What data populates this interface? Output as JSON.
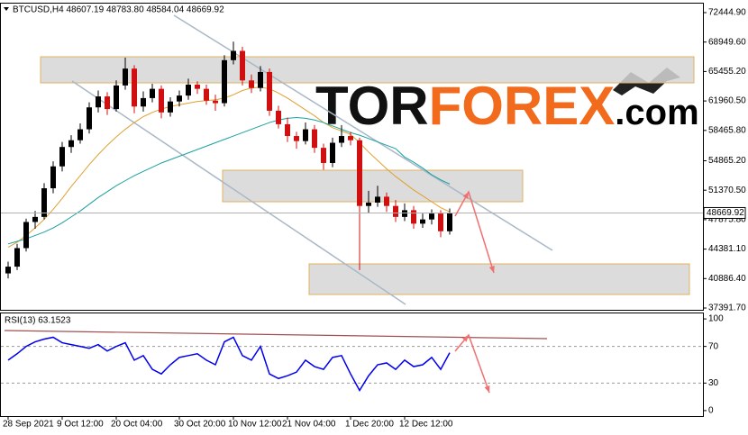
{
  "chart_data": [
    {
      "type": "candlestick",
      "title": "BTCUSD,H4  48607.19 48783.80 48584.04 48669.92",
      "categories": [
        "28 Sep 2021",
        null,
        null,
        null,
        null,
        null,
        "9 Oct 12:00",
        null,
        null,
        null,
        null,
        null,
        "20 Oct 04:00",
        null,
        null,
        null,
        null,
        null,
        null,
        "30 Oct 20:00",
        null,
        null,
        null,
        null,
        null,
        "10 Nov 12:00",
        null,
        null,
        null,
        null,
        null,
        "21 Nov 04:00",
        null,
        null,
        null,
        null,
        null,
        null,
        "1 Dec 20:00",
        null,
        null,
        null,
        null,
        null,
        "12 Dec 12:00",
        null,
        null,
        null,
        null,
        null
      ],
      "candles": [
        [
          41500,
          42900,
          40900,
          42300
        ],
        [
          42300,
          45000,
          41900,
          44500
        ],
        [
          44500,
          48000,
          44100,
          47600
        ],
        [
          47600,
          48900,
          46800,
          48200
        ],
        [
          48200,
          52200,
          47900,
          51600
        ],
        [
          51600,
          54800,
          51000,
          54200
        ],
        [
          54200,
          57100,
          53600,
          56500
        ],
        [
          56500,
          57900,
          55800,
          57300
        ],
        [
          57300,
          59300,
          56900,
          58600
        ],
        [
          58600,
          61800,
          58100,
          61200
        ],
        [
          61200,
          63200,
          60600,
          62500
        ],
        [
          62500,
          63000,
          60300,
          61000
        ],
        [
          61000,
          64400,
          60700,
          63800
        ],
        [
          63800,
          67100,
          63300,
          65800
        ],
        [
          65800,
          66200,
          60500,
          61300
        ],
        [
          61300,
          63100,
          60700,
          62300
        ],
        [
          62300,
          64000,
          61800,
          63400
        ],
        [
          63400,
          63800,
          59900,
          60600
        ],
        [
          60600,
          62400,
          60100,
          61900
        ],
        [
          61900,
          63200,
          61300,
          62600
        ],
        [
          62600,
          64600,
          62100,
          63900
        ],
        [
          63900,
          64300,
          62800,
          63400
        ],
        [
          63400,
          63900,
          61500,
          62000
        ],
        [
          62000,
          62700,
          60800,
          61700
        ],
        [
          61700,
          67400,
          61300,
          66800
        ],
        [
          66800,
          69000,
          66300,
          67900
        ],
        [
          67900,
          68400,
          63800,
          64400
        ],
        [
          64400,
          65100,
          62900,
          63500
        ],
        [
          63500,
          66100,
          63100,
          65400
        ],
        [
          65400,
          65800,
          60200,
          60800
        ],
        [
          60800,
          61400,
          58700,
          59200
        ],
        [
          59200,
          60000,
          57100,
          57800
        ],
        [
          57800,
          58300,
          56300,
          57200
        ],
        [
          57200,
          59400,
          56800,
          58600
        ],
        [
          58600,
          59100,
          55800,
          56400
        ],
        [
          56400,
          56900,
          53800,
          54600
        ],
        [
          54600,
          57600,
          54100,
          57000
        ],
        [
          57000,
          59100,
          56500,
          57800
        ],
        [
          57800,
          58300,
          56700,
          57300
        ],
        [
          57300,
          57600,
          41900,
          49500
        ],
        [
          49500,
          51300,
          48700,
          49900
        ],
        [
          49900,
          51900,
          49400,
          50600
        ],
        [
          50600,
          51100,
          48800,
          49500
        ],
        [
          49500,
          50200,
          47600,
          48200
        ],
        [
          48200,
          49800,
          47700,
          49000
        ],
        [
          49000,
          49500,
          46800,
          47400
        ],
        [
          47400,
          48600,
          46900,
          47900
        ],
        [
          47900,
          49100,
          47300,
          48600
        ],
        [
          48600,
          49000,
          45800,
          46500
        ],
        [
          46500,
          49200,
          46100,
          48669.92
        ]
      ],
      "up_color": "#000000",
      "down_color": "#d01010",
      "series": [
        {
          "color": "#e0a030",
          "values": [
            44600,
            45200,
            46000,
            46900,
            47900,
            49100,
            50400,
            51800,
            53100,
            54400,
            55600,
            56700,
            57700,
            58600,
            59400,
            60100,
            60600,
            61000,
            61300,
            61500,
            61700,
            61900,
            62000,
            62100,
            62300,
            62700,
            63200,
            63500,
            63600,
            63400,
            62900,
            62300,
            61600,
            60900,
            60200,
            59400,
            58800,
            58400,
            58000,
            57000,
            55900,
            54900,
            53900,
            53000,
            52200,
            51400,
            50700,
            50000,
            49300,
            48800
          ]
        },
        {
          "color": "#1aa0a0",
          "values": [
            45000,
            45300,
            45600,
            46000,
            46400,
            46900,
            47500,
            48200,
            48900,
            49700,
            50500,
            51200,
            51900,
            52500,
            53100,
            53600,
            54100,
            54600,
            55000,
            55400,
            55800,
            56200,
            56600,
            57000,
            57400,
            57800,
            58200,
            58600,
            59000,
            59400,
            59700,
            59900,
            60000,
            59900,
            59700,
            59400,
            59000,
            58600,
            58200,
            57900,
            57500,
            57100,
            56700,
            56300,
            55300,
            54700,
            54000,
            53200,
            52600,
            52100
          ]
        }
      ],
      "ylim": [
        37071,
        73513
      ],
      "yticks": [
        {
          "value": 72444.9,
          "label": "72444.90"
        },
        {
          "value": 68949.6,
          "label": "68949.60"
        },
        {
          "value": 65455.2,
          "label": "65455.20"
        },
        {
          "value": 61960.5,
          "label": "61960.50"
        },
        {
          "value": 58465.8,
          "label": "58465.80"
        },
        {
          "value": 54865.2,
          "label": "54865.20"
        },
        {
          "value": 51370.5,
          "label": "51370.50"
        },
        {
          "value": 47875.8,
          "label": "47875.80"
        },
        {
          "value": 44381.1,
          "label": "44381.10"
        },
        {
          "value": 40886.4,
          "label": "40886.40"
        },
        {
          "value": 37391.7,
          "label": "37391.70"
        }
      ],
      "last_price": 48669.92,
      "watermark": [
        "TOR",
        "FOREX",
        ".com"
      ]
    },
    {
      "type": "line",
      "title": "RSI(13) 63.1523",
      "series": [
        {
          "color": "#0000ee",
          "values": [
            55,
            62,
            70,
            75,
            78,
            80,
            74,
            72,
            70,
            68,
            72,
            65,
            70,
            74,
            55,
            60,
            45,
            40,
            50,
            58,
            60,
            62,
            55,
            50,
            75,
            80,
            60,
            55,
            70,
            40,
            35,
            38,
            42,
            55,
            48,
            45,
            58,
            60,
            40,
            22,
            38,
            50,
            52,
            45,
            55,
            48,
            50,
            58,
            45,
            63.1523
          ]
        }
      ],
      "ylim": [
        -6,
        106
      ],
      "yticks": [
        0,
        30,
        70,
        100
      ],
      "levels": [
        70,
        30
      ]
    }
  ]
}
